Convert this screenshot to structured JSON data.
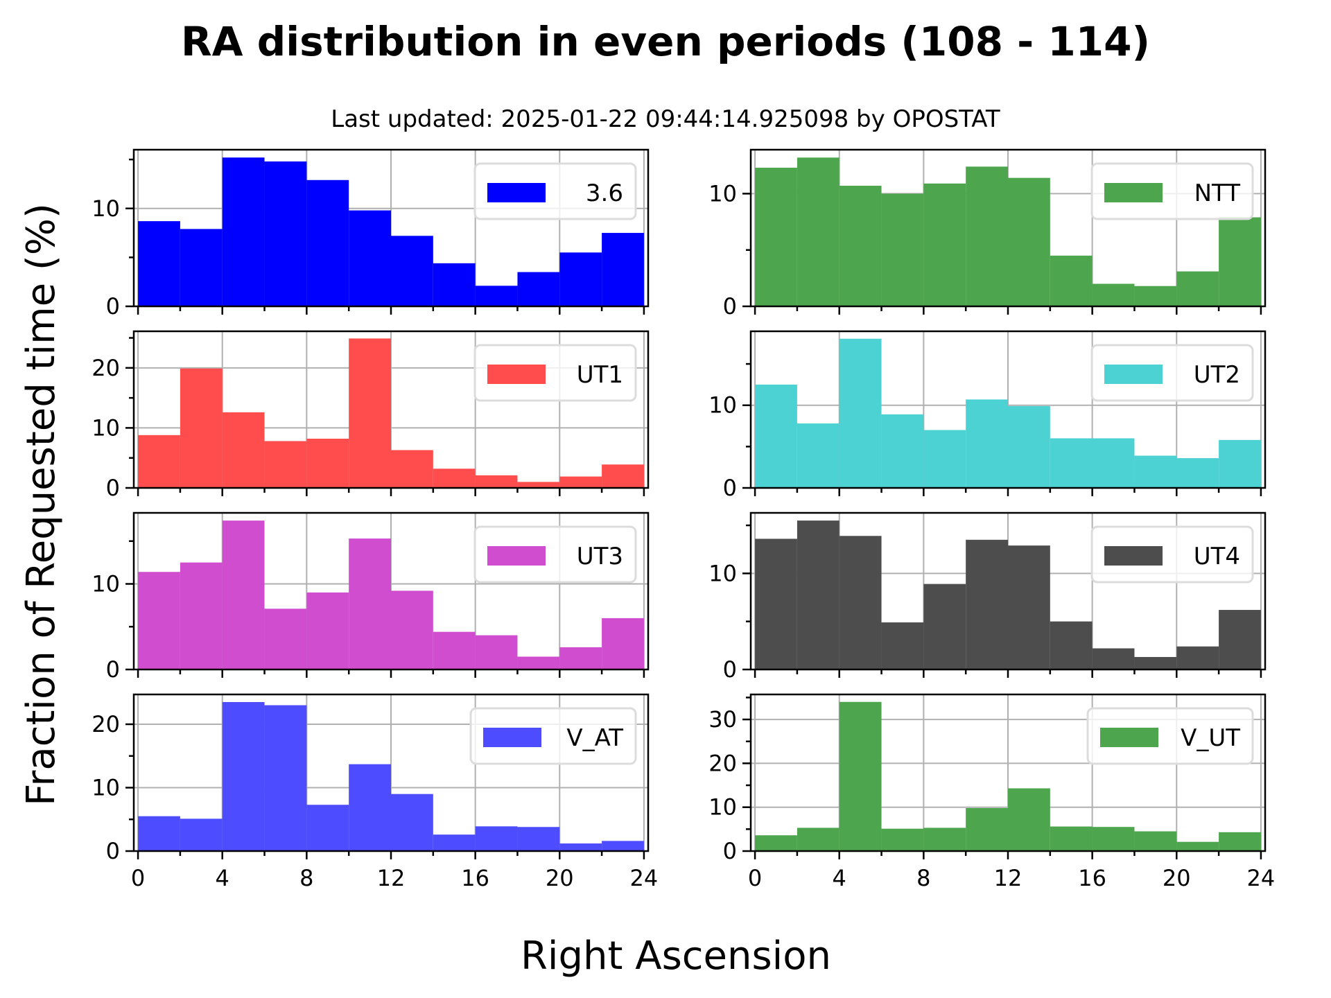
{
  "chart_data": {
    "type": "bar",
    "title": "RA distribution in even periods (108 - 114)",
    "subtitle": "Last updated: 2025-01-22 09:44:14.925098 by OPOSTAT",
    "xlabel": "Right Ascension",
    "ylabel": "Fraction of Requested time (%)",
    "bin_edges": [
      0,
      2,
      4,
      6,
      8,
      10,
      12,
      14,
      16,
      18,
      20,
      22,
      24
    ],
    "xlim": [
      -0.2,
      24.2
    ],
    "xticks": [
      0,
      4,
      8,
      12,
      16,
      20,
      24
    ],
    "xtick_labels": [
      "0",
      "4",
      "8",
      "12",
      "16",
      "20",
      "24"
    ],
    "grid": true,
    "legend_position": "top-right",
    "panels": [
      {
        "name": "3.6",
        "color": "#0000ff",
        "ylim": [
          0,
          16.0
        ],
        "yticks": [
          0,
          10
        ],
        "yminor": [
          5,
          15
        ],
        "values": [
          8.7,
          7.9,
          15.2,
          14.8,
          12.9,
          9.8,
          7.2,
          4.4,
          2.1,
          3.5,
          5.5,
          7.5
        ]
      },
      {
        "name": "NTT",
        "color": "#4da64d",
        "ylim": [
          0,
          13.9
        ],
        "yticks": [
          0,
          10
        ],
        "yminor": [
          5
        ],
        "values": [
          12.3,
          13.2,
          10.7,
          10.0,
          10.9,
          12.4,
          11.4,
          4.5,
          2.0,
          1.8,
          3.1,
          7.9
        ]
      },
      {
        "name": "UT1",
        "color": "#ff4d4d",
        "ylim": [
          0,
          26.1
        ],
        "yticks": [
          0,
          10,
          20
        ],
        "yminor": [
          5,
          15,
          25
        ],
        "values": [
          8.8,
          19.9,
          12.6,
          7.8,
          8.2,
          24.9,
          6.3,
          3.2,
          2.1,
          1.0,
          1.9,
          3.9
        ]
      },
      {
        "name": "UT2",
        "color": "#4dd2d4",
        "ylim": [
          0,
          18.95
        ],
        "yticks": [
          0,
          10
        ],
        "yminor": [
          5,
          15
        ],
        "values": [
          12.5,
          7.8,
          18.05,
          8.9,
          7.0,
          10.7,
          9.9,
          6.0,
          6.0,
          3.9,
          3.6,
          5.8
        ]
      },
      {
        "name": "UT3",
        "color": "#d04dd0",
        "ylim": [
          0,
          18.3
        ],
        "yticks": [
          0,
          10
        ],
        "yminor": [
          5,
          15
        ],
        "values": [
          11.4,
          12.5,
          17.4,
          7.1,
          9.0,
          15.3,
          9.2,
          4.4,
          4.0,
          1.5,
          2.6,
          6.0
        ]
      },
      {
        "name": "UT4",
        "color": "#4d4d4d",
        "ylim": [
          0,
          16.3
        ],
        "yticks": [
          0,
          10
        ],
        "yminor": [
          5,
          15
        ],
        "values": [
          13.6,
          15.5,
          13.9,
          4.9,
          8.9,
          13.5,
          12.9,
          5.0,
          2.2,
          1.3,
          2.4,
          6.2
        ]
      },
      {
        "name": "V_AT",
        "color": "#4d4dff",
        "ylim": [
          0,
          24.7
        ],
        "yticks": [
          0,
          10,
          20
        ],
        "yminor": [
          5,
          15
        ],
        "values": [
          5.5,
          5.1,
          23.5,
          23.0,
          7.3,
          13.7,
          9.0,
          2.6,
          3.9,
          3.8,
          1.2,
          1.6
        ]
      },
      {
        "name": "V_UT",
        "color": "#4da64d",
        "ylim": [
          0,
          35.7
        ],
        "yticks": [
          0,
          10,
          20,
          30
        ],
        "yminor": [
          5,
          15,
          25,
          35
        ],
        "values": [
          3.6,
          5.3,
          34.0,
          5.1,
          5.3,
          9.8,
          14.3,
          5.6,
          5.5,
          4.5,
          2.1,
          4.3
        ]
      }
    ]
  }
}
